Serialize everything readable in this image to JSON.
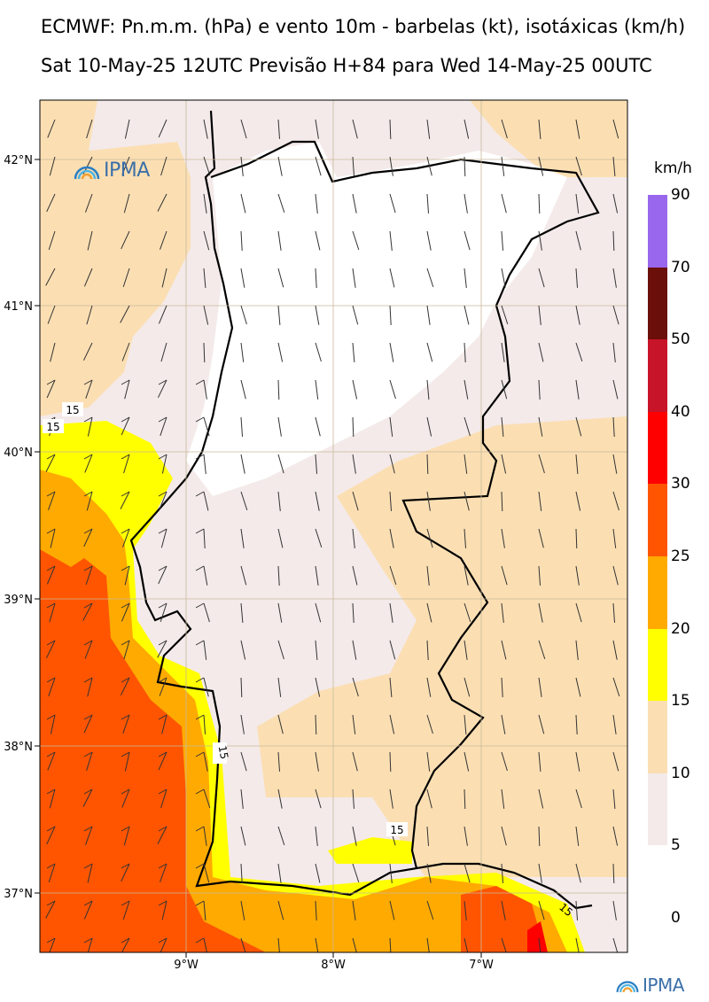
{
  "title_line1": "ECMWF: Pn.m.m. (hPa) e vento 10m - barbelas (kt), isotáxicas (km/h)",
  "title_line2": "Sat 10-May-25 12UTC Previsão H+84 para Wed 14-May-25 00UTC",
  "brand": "IPMA",
  "colorbar": {
    "unit": "km/h",
    "levels": [
      "0",
      "5",
      "10",
      "15",
      "20",
      "25",
      "30",
      "40",
      "50",
      "70",
      "90"
    ],
    "colors": [
      "#ffffff",
      "#f4eaea",
      "#fbdfb3",
      "#ffff00",
      "#ffaa00",
      "#ff5500",
      "#ff0000",
      "#c81428",
      "#6b0f0a",
      "#9966ee"
    ]
  },
  "axes": {
    "lon_ticks": [
      "9°W",
      "8°W",
      "7°W"
    ],
    "lat_ticks": [
      "42°N",
      "41°N",
      "40°N",
      "39°N",
      "38°N",
      "37°N"
    ]
  },
  "contour_labels": [
    "15",
    "15",
    "15",
    "15",
    "15"
  ]
}
